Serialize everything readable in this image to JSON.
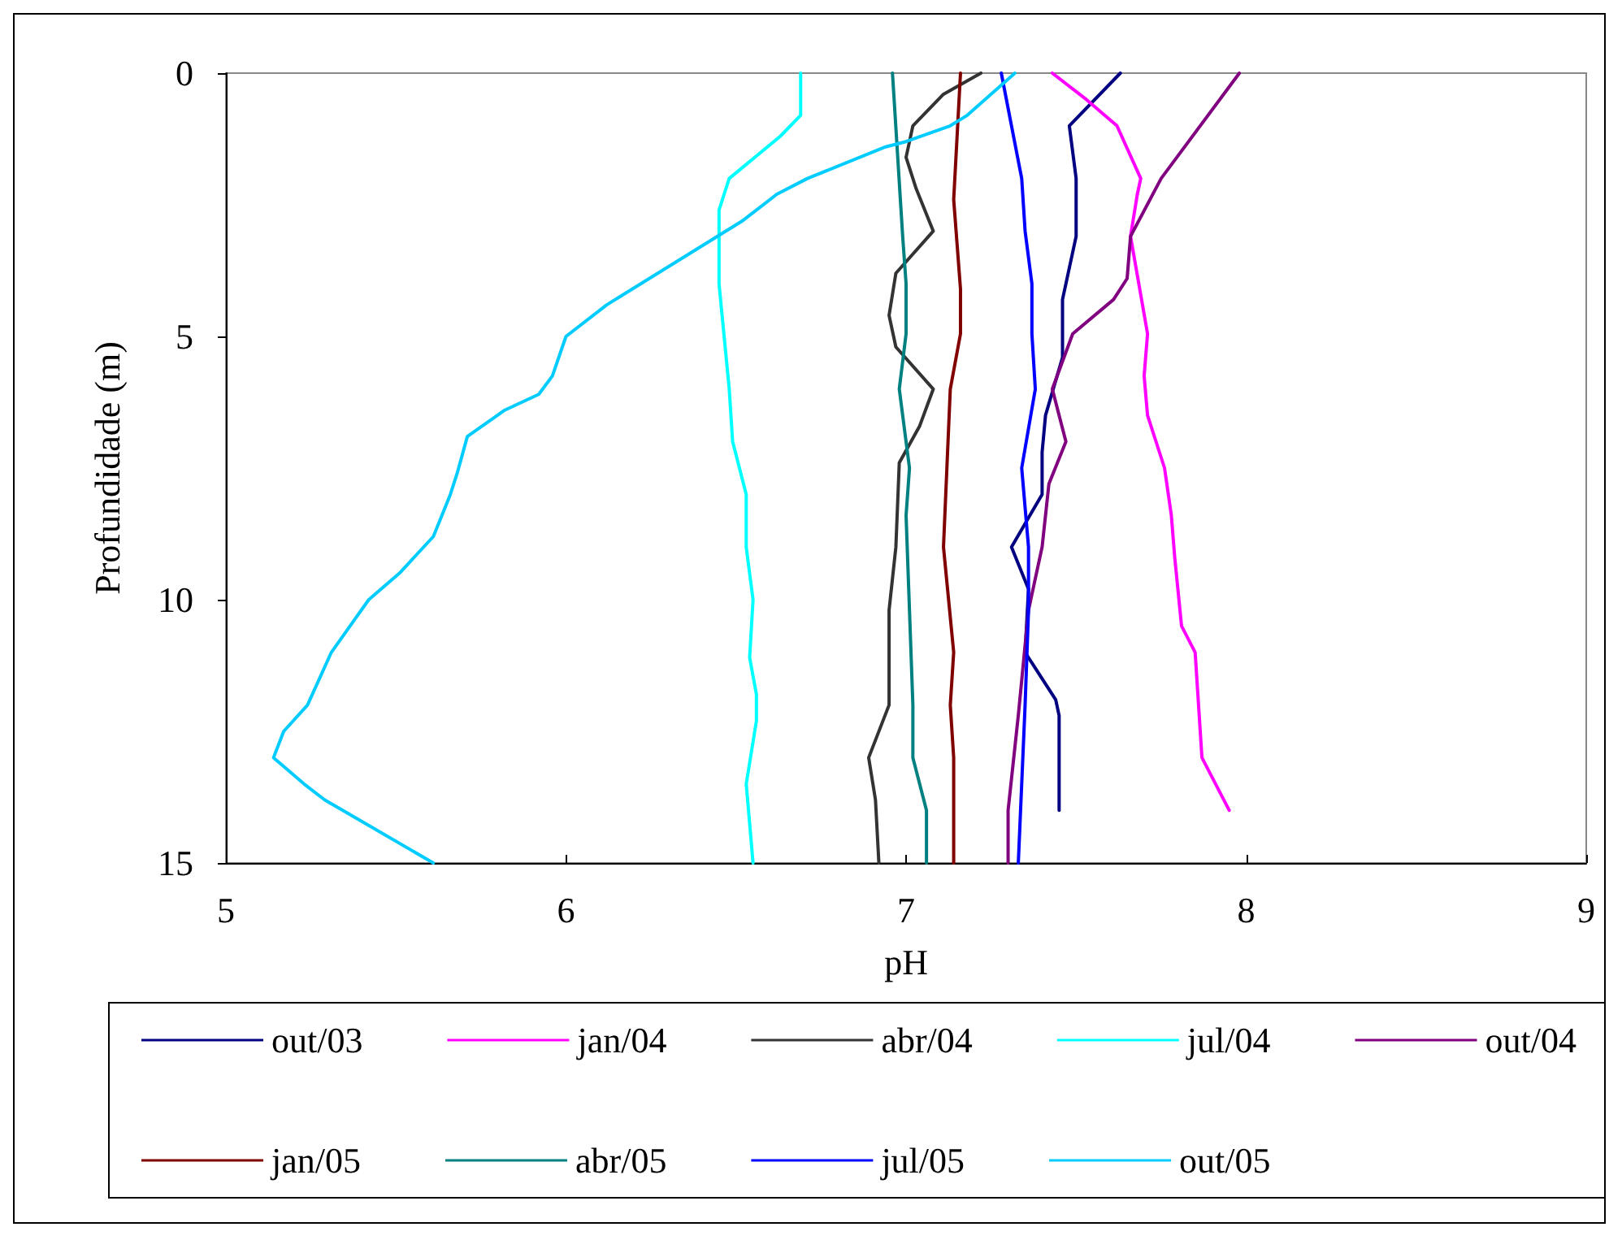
{
  "chart_data": {
    "type": "line",
    "xlabel": "pH",
    "ylabel": "Profundidade (m)",
    "xlim": [
      5,
      9
    ],
    "xticks": [
      5,
      6,
      7,
      8,
      9
    ],
    "ylim": [
      15,
      0
    ],
    "yticks": [
      0,
      5,
      10,
      15
    ],
    "grid": false,
    "legend": "bottom",
    "marker": "none",
    "line_style": "solid",
    "series": [
      {
        "name": "out/03",
        "color": "#000080",
        "x": [
          7.63,
          7.48,
          7.5,
          7.5,
          7.46,
          7.46,
          7.41,
          7.4,
          7.4,
          7.31,
          7.36,
          7.35,
          7.44,
          7.45,
          7.45
        ],
        "values": [
          0,
          1,
          2,
          3.1,
          4.3,
          5.4,
          6.5,
          7.2,
          8,
          9,
          9.8,
          11,
          11.9,
          12.2,
          14
        ]
      },
      {
        "name": "jan/04",
        "color": "#ff00ff",
        "x": [
          7.43,
          7.53,
          7.62,
          7.69,
          7.68,
          7.66,
          7.71,
          7.7,
          7.71,
          7.76,
          7.78,
          7.79,
          7.81,
          7.85,
          7.87,
          7.95
        ],
        "values": [
          0,
          0.5,
          1,
          2,
          2.3,
          3.1,
          4.95,
          5.75,
          6.5,
          7.5,
          8.4,
          9.2,
          10.5,
          11,
          13,
          14
        ]
      },
      {
        "name": "abr/04",
        "color": "#333333",
        "x": [
          7.22,
          7.11,
          7.02,
          7,
          7.03,
          7.08,
          6.97,
          6.95,
          6.97,
          7.08,
          7.04,
          6.98,
          6.97,
          6.95,
          6.95,
          6.89,
          6.91,
          6.92
        ],
        "values": [
          0,
          0.4,
          1,
          1.6,
          2.2,
          3,
          3.8,
          4.6,
          5.2,
          6,
          6.7,
          7.4,
          9,
          10.2,
          12,
          13,
          13.8,
          15
        ]
      },
      {
        "name": "jul/04",
        "color": "#00ffff",
        "x": [
          6.69,
          6.69,
          6.63,
          6.48,
          6.45,
          6.45,
          6.48,
          6.49,
          6.53,
          6.53,
          6.55,
          6.54,
          6.56,
          6.56,
          6.53,
          6.55
        ],
        "values": [
          0,
          0.8,
          1.2,
          2,
          2.6,
          4,
          6,
          7,
          8,
          9,
          10,
          11.1,
          11.8,
          12.3,
          13.5,
          15
        ]
      },
      {
        "name": "out/04",
        "color": "#800080",
        "x": [
          7.98,
          7.75,
          7.66,
          7.65,
          7.61,
          7.49,
          7.43,
          7.47,
          7.42,
          7.4,
          7.36,
          7.33,
          7.3,
          7.3
        ],
        "values": [
          0,
          2,
          3.1,
          3.9,
          4.3,
          4.95,
          6,
          7,
          7.8,
          9,
          10.2,
          12.2,
          14,
          15
        ]
      },
      {
        "name": "jan/05",
        "color": "#800000",
        "x": [
          7.16,
          7.14,
          7.16,
          7.16,
          7.13,
          7.12,
          7.11,
          7.14,
          7.13,
          7.14,
          7.14
        ],
        "values": [
          0,
          2.4,
          4.1,
          4.95,
          6,
          7.5,
          9,
          11,
          12,
          13,
          15
        ]
      },
      {
        "name": "abr/05",
        "color": "#008080",
        "x": [
          6.96,
          6.99,
          7,
          7,
          6.98,
          7.01,
          7,
          7.01,
          7.02,
          7.02,
          7.06,
          7.06
        ],
        "values": [
          0,
          3.1,
          4,
          4.95,
          6,
          7.5,
          8.4,
          10.2,
          12,
          13,
          14,
          15
        ]
      },
      {
        "name": "jul/05",
        "color": "#0000ff",
        "x": [
          7.28,
          7.31,
          7.34,
          7.35,
          7.37,
          7.37,
          7.38,
          7.34,
          7.36,
          7.36,
          7.35,
          7.33
        ],
        "values": [
          0,
          1,
          2,
          3,
          4,
          4.95,
          6,
          7.5,
          9,
          10.2,
          12,
          15
        ]
      },
      {
        "name": "out/05",
        "color": "#00ccff",
        "x": [
          7.32,
          7.18,
          7.13,
          7,
          6.94,
          6.71,
          6.62,
          6.52,
          6.12,
          6,
          5.96,
          5.92,
          5.82,
          5.71,
          5.68,
          5.66,
          5.61,
          5.51,
          5.42,
          5.31,
          5.24,
          5.17,
          5.14,
          5.23,
          5.29,
          5.61
        ],
        "values": [
          0,
          0.8,
          1,
          1.3,
          1.4,
          2,
          2.3,
          2.8,
          4.4,
          5,
          5.75,
          6.1,
          6.4,
          6.9,
          7.6,
          8,
          8.8,
          9.5,
          10,
          11,
          12,
          12.5,
          13,
          13.5,
          13.8,
          15
        ]
      }
    ]
  }
}
